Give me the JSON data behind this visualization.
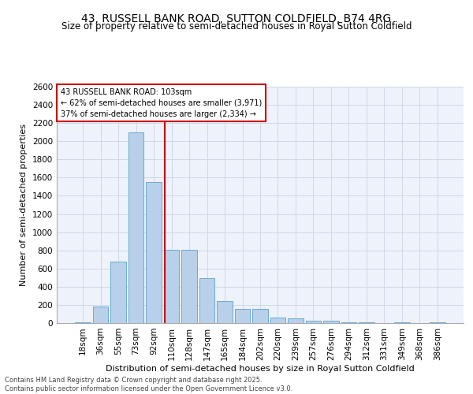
{
  "title": "43, RUSSELL BANK ROAD, SUTTON COLDFIELD, B74 4RG",
  "subtitle": "Size of property relative to semi-detached houses in Royal Sutton Coldfield",
  "xlabel": "Distribution of semi-detached houses by size in Royal Sutton Coldfield",
  "ylabel": "Number of semi-detached properties",
  "categories": [
    "18sqm",
    "36sqm",
    "55sqm",
    "73sqm",
    "92sqm",
    "110sqm",
    "128sqm",
    "147sqm",
    "165sqm",
    "184sqm",
    "202sqm",
    "220sqm",
    "239sqm",
    "257sqm",
    "276sqm",
    "294sqm",
    "312sqm",
    "331sqm",
    "349sqm",
    "368sqm",
    "386sqm"
  ],
  "values": [
    5,
    180,
    680,
    2100,
    1550,
    810,
    810,
    490,
    240,
    160,
    160,
    60,
    55,
    28,
    28,
    10,
    5,
    0,
    5,
    0,
    5
  ],
  "bar_color": "#b8d0ea",
  "bar_edge_color": "#6aaad4",
  "annotation_text_line1": "43 RUSSELL BANK ROAD: 103sqm",
  "annotation_text_line2": "← 62% of semi-detached houses are smaller (3,971)",
  "annotation_text_line3": "37% of semi-detached houses are larger (2,334) →",
  "ylim": [
    0,
    2600
  ],
  "yticks": [
    0,
    200,
    400,
    600,
    800,
    1000,
    1200,
    1400,
    1600,
    1800,
    2000,
    2200,
    2400,
    2600
  ],
  "grid_color": "#d0d8e8",
  "background_color": "#eef2fa",
  "title_fontsize": 10,
  "subtitle_fontsize": 8.5,
  "axis_label_fontsize": 8,
  "tick_fontsize": 7.5,
  "footer": "Contains HM Land Registry data © Crown copyright and database right 2025.\nContains public sector information licensed under the Open Government Licence v3.0."
}
